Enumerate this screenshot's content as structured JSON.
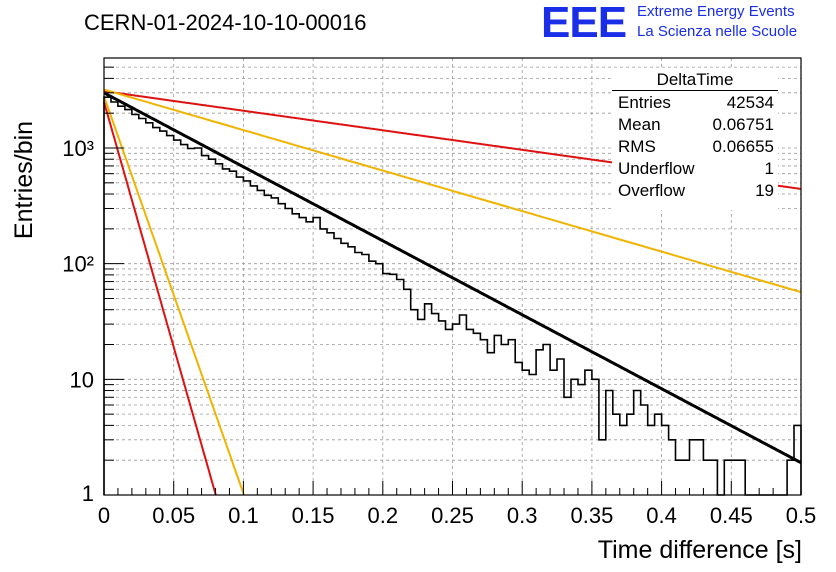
{
  "header": {
    "plot_title": "CERN-01-2024-10-10-00016",
    "logo_text": "EEE",
    "logo_line1": "Extreme Energy Events",
    "logo_line2": "La Scienza nelle Scuole",
    "logo_color": "#1a2ee8"
  },
  "stats": {
    "title": "DeltaTime",
    "rows": [
      {
        "label": "Entries",
        "value": "42534"
      },
      {
        "label": "Mean",
        "value": "0.06751"
      },
      {
        "label": "RMS",
        "value": "0.06655"
      },
      {
        "label": "Underflow",
        "value": "1"
      },
      {
        "label": "Overflow",
        "value": "19"
      }
    ]
  },
  "chart_data": {
    "type": "line",
    "xlabel": "Time difference [s]",
    "ylabel": "Entries/bin",
    "xlim": [
      0,
      0.5
    ],
    "ylim": [
      1,
      6000
    ],
    "yscale": "log",
    "grid": true,
    "x_ticks": [
      "0",
      "0.05",
      "0.1",
      "0.15",
      "0.2",
      "0.25",
      "0.3",
      "0.35",
      "0.4",
      "0.45",
      "0.5"
    ],
    "y_ticks": [
      "1",
      "10",
      "10²",
      "10³"
    ],
    "y_tick_values": [
      1,
      10,
      100,
      1000
    ],
    "bin_width": 0.005,
    "histogram": {
      "color": "#000000",
      "values": [
        2750,
        2500,
        2300,
        2150,
        1950,
        1800,
        1650,
        1500,
        1400,
        1280,
        1170,
        1070,
        990,
        1000,
        860,
        800,
        730,
        660,
        630,
        560,
        520,
        470,
        430,
        390,
        370,
        330,
        300,
        270,
        250,
        230,
        250,
        200,
        185,
        165,
        150,
        140,
        125,
        120,
        105,
        100,
        82,
        81,
        73,
        60,
        40,
        33,
        45,
        37,
        32,
        27,
        30,
        36,
        27,
        25,
        22,
        17,
        24,
        20,
        22,
        14,
        12,
        11,
        18,
        20,
        12,
        15,
        7,
        10,
        9,
        12,
        10,
        3,
        8,
        5,
        4,
        5,
        8,
        6,
        4,
        5,
        4,
        3,
        2,
        2,
        3,
        3,
        2,
        2,
        1,
        2,
        2,
        2,
        1,
        1,
        1,
        1,
        1,
        1,
        2,
        4
      ]
    },
    "series": [
      {
        "color": "#000000",
        "A": 3000,
        "tau": 0.0679
      },
      {
        "color": "#dd1111",
        "A": 3100,
        "tau": 0.257
      },
      {
        "color": "#f0b400",
        "A": 3200,
        "tau": 0.124
      },
      {
        "color": "#f0b400",
        "A": 2800,
        "tau": 0.01265
      },
      {
        "color": "#dd1111",
        "A": 2500,
        "tau": 0.01025
      }
    ]
  }
}
